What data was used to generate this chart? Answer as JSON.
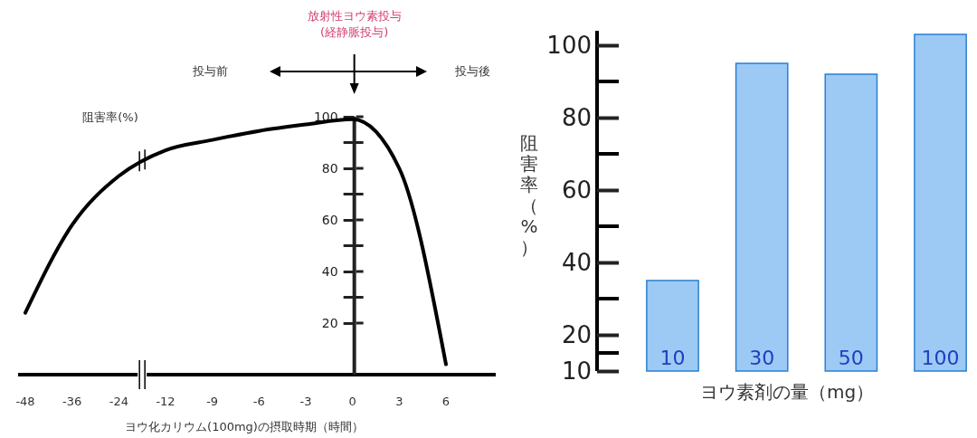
{
  "chart_data": [
    {
      "type": "line",
      "categories": [
        "-48",
        "-36",
        "-24",
        "-12",
        "-9",
        "-6",
        "-3",
        "0",
        "3",
        "6"
      ],
      "series": [
        {
          "color": "#000000",
          "values": [
            24,
            58,
            77,
            87,
            91,
            94.5,
            97,
            99,
            80,
            4
          ]
        }
      ],
      "xlabel": "ヨウ化カリウム(100mg)の摂取時期（時間）",
      "ylabel": "阻害率(%)",
      "annotations": [
        "放射性ヨウ素投与\n(経静脈投与)",
        "投与前",
        "投与後"
      ],
      "ylim": [
        0,
        100
      ],
      "yticks": [
        20,
        40,
        60,
        80,
        100
      ]
    },
    {
      "type": "bar",
      "categories": [
        "10",
        "30",
        "50",
        "100"
      ],
      "values": [
        35,
        95,
        92,
        103
      ],
      "color": "#9ccaf5",
      "xlabel": "ヨウ素剤の量（mg）",
      "ylabel": "阻害率（%）",
      "ylim": [
        10,
        104
      ],
      "yticks": [
        10,
        20,
        40,
        60,
        80,
        100
      ]
    }
  ]
}
